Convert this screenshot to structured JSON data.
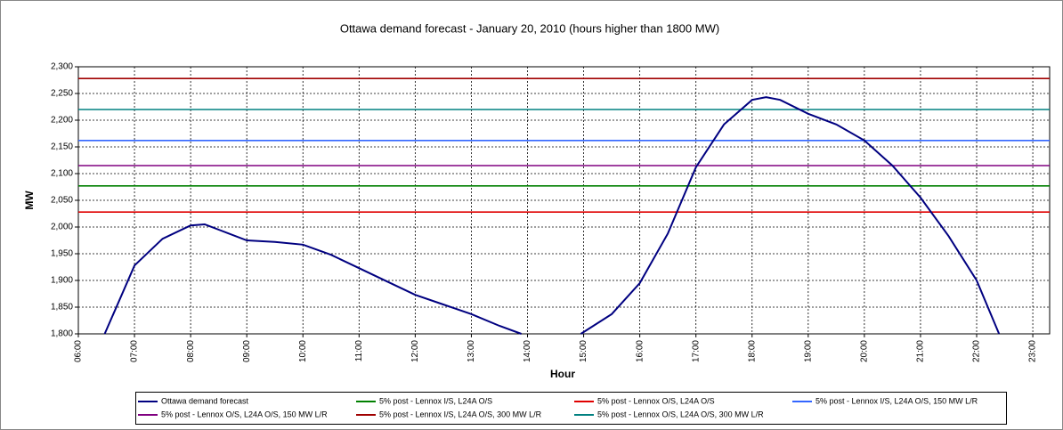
{
  "chart_data": {
    "type": "line",
    "title": "Ottawa demand forecast - January 20, 2010 (hours higher than 1800 MW)",
    "x_label": "Hour",
    "y_label": "MW",
    "xlim": [
      6,
      23.3
    ],
    "ylim": [
      1800,
      2300
    ],
    "xticks": [
      {
        "value": 6,
        "label": "06:00"
      },
      {
        "value": 7,
        "label": "07:00"
      },
      {
        "value": 8,
        "label": "08:00"
      },
      {
        "value": 9,
        "label": "09:00"
      },
      {
        "value": 10,
        "label": "10:00"
      },
      {
        "value": 11,
        "label": "11:00"
      },
      {
        "value": 12,
        "label": "12:00"
      },
      {
        "value": 13,
        "label": "13:00"
      },
      {
        "value": 14,
        "label": "14:00"
      },
      {
        "value": 15,
        "label": "15:00"
      },
      {
        "value": 16,
        "label": "16:00"
      },
      {
        "value": 17,
        "label": "17:00"
      },
      {
        "value": 18,
        "label": "18:00"
      },
      {
        "value": 19,
        "label": "19:00"
      },
      {
        "value": 20,
        "label": "20:00"
      },
      {
        "value": 21,
        "label": "21:00"
      },
      {
        "value": 22,
        "label": "22:00"
      },
      {
        "value": 23,
        "label": "23:00"
      }
    ],
    "yticks": [
      {
        "value": 1800,
        "label": "1,800"
      },
      {
        "value": 1850,
        "label": "1,850"
      },
      {
        "value": 1900,
        "label": "1,900"
      },
      {
        "value": 1950,
        "label": "1,950"
      },
      {
        "value": 2000,
        "label": "2,000"
      },
      {
        "value": 2050,
        "label": "2,050"
      },
      {
        "value": 2100,
        "label": "2,100"
      },
      {
        "value": 2150,
        "label": "2,150"
      },
      {
        "value": 2200,
        "label": "2,200"
      },
      {
        "value": 2250,
        "label": "2,250"
      },
      {
        "value": 2300,
        "label": "2,300"
      }
    ],
    "grid": true,
    "series": [
      {
        "name": "Ottawa demand forecast",
        "color": "#000080",
        "x": [
          6.47,
          7,
          7.5,
          8,
          8.25,
          8.5,
          9,
          9.5,
          10,
          10.5,
          11,
          11.5,
          12,
          12.5,
          13,
          13.5,
          13.89,
          14.4,
          14.95,
          15.5,
          16,
          16.5,
          17,
          17.5,
          18,
          18.25,
          18.5,
          19,
          19.5,
          20,
          20.5,
          21,
          21.5,
          22,
          22.4
        ],
        "values": [
          1800,
          1928,
          1978,
          2003,
          2005,
          1995,
          1975,
          1972,
          1967,
          1948,
          1923,
          1898,
          1873,
          1855,
          1837,
          1815,
          1800,
          null,
          1800,
          1837,
          1895,
          1988,
          2112,
          2192,
          2238,
          2243,
          2238,
          2212,
          2192,
          2162,
          2115,
          2055,
          1983,
          1900,
          1800
        ]
      },
      {
        "name": "5% post - Lennox I/S, L24A O/S",
        "color": "#008000",
        "x": [
          6,
          23.3
        ],
        "values": [
          2077,
          2077
        ]
      },
      {
        "name": "5% post - Lennox O/S, L24A O/S",
        "color": "#e00000",
        "x": [
          6,
          23.3
        ],
        "values": [
          2028,
          2028
        ]
      },
      {
        "name": "5% post - Lennox I/S, L24A O/S, 150 MW L/R",
        "color": "#3366ff",
        "x": [
          6,
          23.3
        ],
        "values": [
          2162,
          2162
        ]
      },
      {
        "name": "5% post - Lennox O/S, L24A O/S, 150 MW L/R",
        "color": "#800080",
        "x": [
          6,
          23.3
        ],
        "values": [
          2115,
          2115
        ]
      },
      {
        "name": "5% post - Lennox I/S, L24A O/S, 300 MW L/R",
        "color": "#a00000",
        "x": [
          6,
          23.3
        ],
        "values": [
          2278,
          2278
        ]
      },
      {
        "name": "5% post - Lennox O/S, L24A O/S, 300 MW L/R",
        "color": "#008080",
        "x": [
          6,
          23.3
        ],
        "values": [
          2220,
          2220
        ]
      }
    ]
  }
}
